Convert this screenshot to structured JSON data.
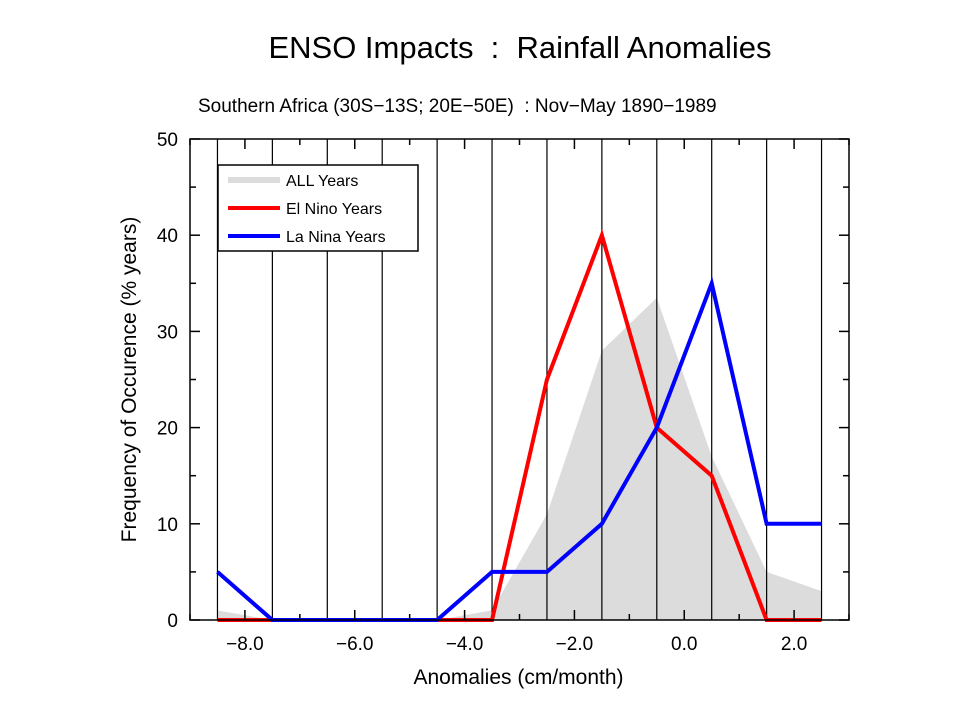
{
  "title": "ENSO Impacts  :  Rainfall Anomalies",
  "subtitle": "Southern Africa (30S−13S; 20E−50E)  : Nov−May 1890−1989",
  "colors": {
    "all_years": "#dcdcdc",
    "el_nino": "#ff0000",
    "la_nina": "#0000ff",
    "grid": "#000000"
  },
  "chart_data": {
    "type": "line",
    "title": "ENSO Impacts  :  Rainfall Anomalies",
    "subtitle": "Southern Africa (30S−13S; 20E−50E)  : Nov−May 1890−1989",
    "xlabel": "Anomalies  (cm/month)",
    "ylabel": "Frequency of Occurence  (% years)",
    "xlim": [
      -9.0,
      3.0
    ],
    "ylim": [
      0,
      50
    ],
    "xticks": [
      -8.0,
      -6.0,
      -4.0,
      -2.0,
      0.0,
      2.0
    ],
    "xtick_labels": [
      "−8.0",
      "−6.0",
      "−4.0",
      "−2.0",
      "0.0",
      "2.0"
    ],
    "yticks": [
      0,
      10,
      20,
      30,
      40,
      50
    ],
    "ytick_labels": [
      "0",
      "10",
      "20",
      "30",
      "40",
      "50"
    ],
    "grid": "vertical",
    "legend_position": "top-left",
    "x": [
      -8.5,
      -7.5,
      -6.5,
      -5.5,
      -4.5,
      -3.5,
      -2.5,
      -1.5,
      -0.5,
      0.5,
      1.5,
      2.5
    ],
    "series": [
      {
        "name": "ALL Years",
        "style": "area",
        "values": [
          1,
          0,
          0,
          0,
          0,
          1,
          11,
          28,
          33.5,
          17,
          5,
          3
        ]
      },
      {
        "name": "El Nino Years",
        "style": "line",
        "values": [
          0,
          0,
          0,
          0,
          0,
          0,
          25,
          40,
          20,
          15,
          0,
          0
        ]
      },
      {
        "name": "La Nina Years",
        "style": "line",
        "values": [
          5,
          0,
          0,
          0,
          0,
          5,
          5,
          10,
          20,
          35,
          10,
          10
        ]
      }
    ]
  }
}
